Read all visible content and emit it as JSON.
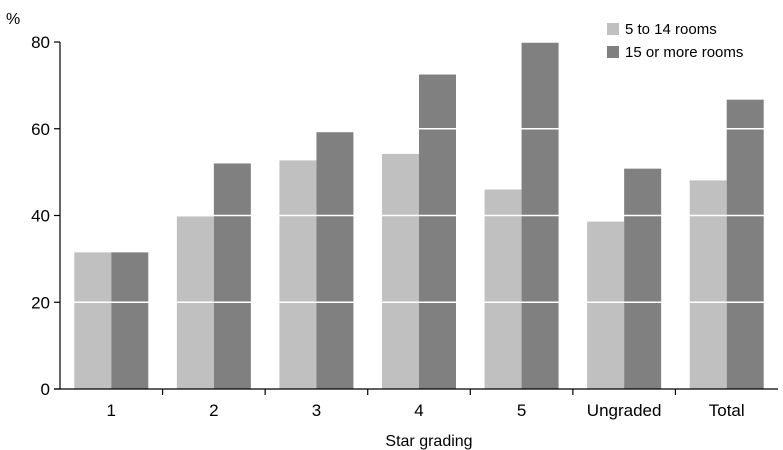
{
  "chart_data": {
    "type": "bar",
    "xlabel": "Star grading",
    "ylabel": "%",
    "ylim": [
      0,
      80
    ],
    "yticks": [
      0,
      20,
      40,
      60,
      80
    ],
    "grid": "white horizontal gridlines drawn over bars",
    "legend_position": "top-right",
    "categories": [
      "1",
      "2",
      "3",
      "4",
      "5",
      "Ungraded",
      "Total"
    ],
    "series": [
      {
        "name": "5 to 14 rooms",
        "color": "#c0c0c0",
        "values": [
          31.5,
          39.8,
          52.7,
          54.2,
          46.0,
          38.6,
          48.1
        ]
      },
      {
        "name": "15 or more rooms",
        "color": "#808080",
        "values": [
          31.5,
          52.0,
          59.2,
          72.5,
          79.9,
          50.8,
          66.7
        ]
      }
    ]
  }
}
